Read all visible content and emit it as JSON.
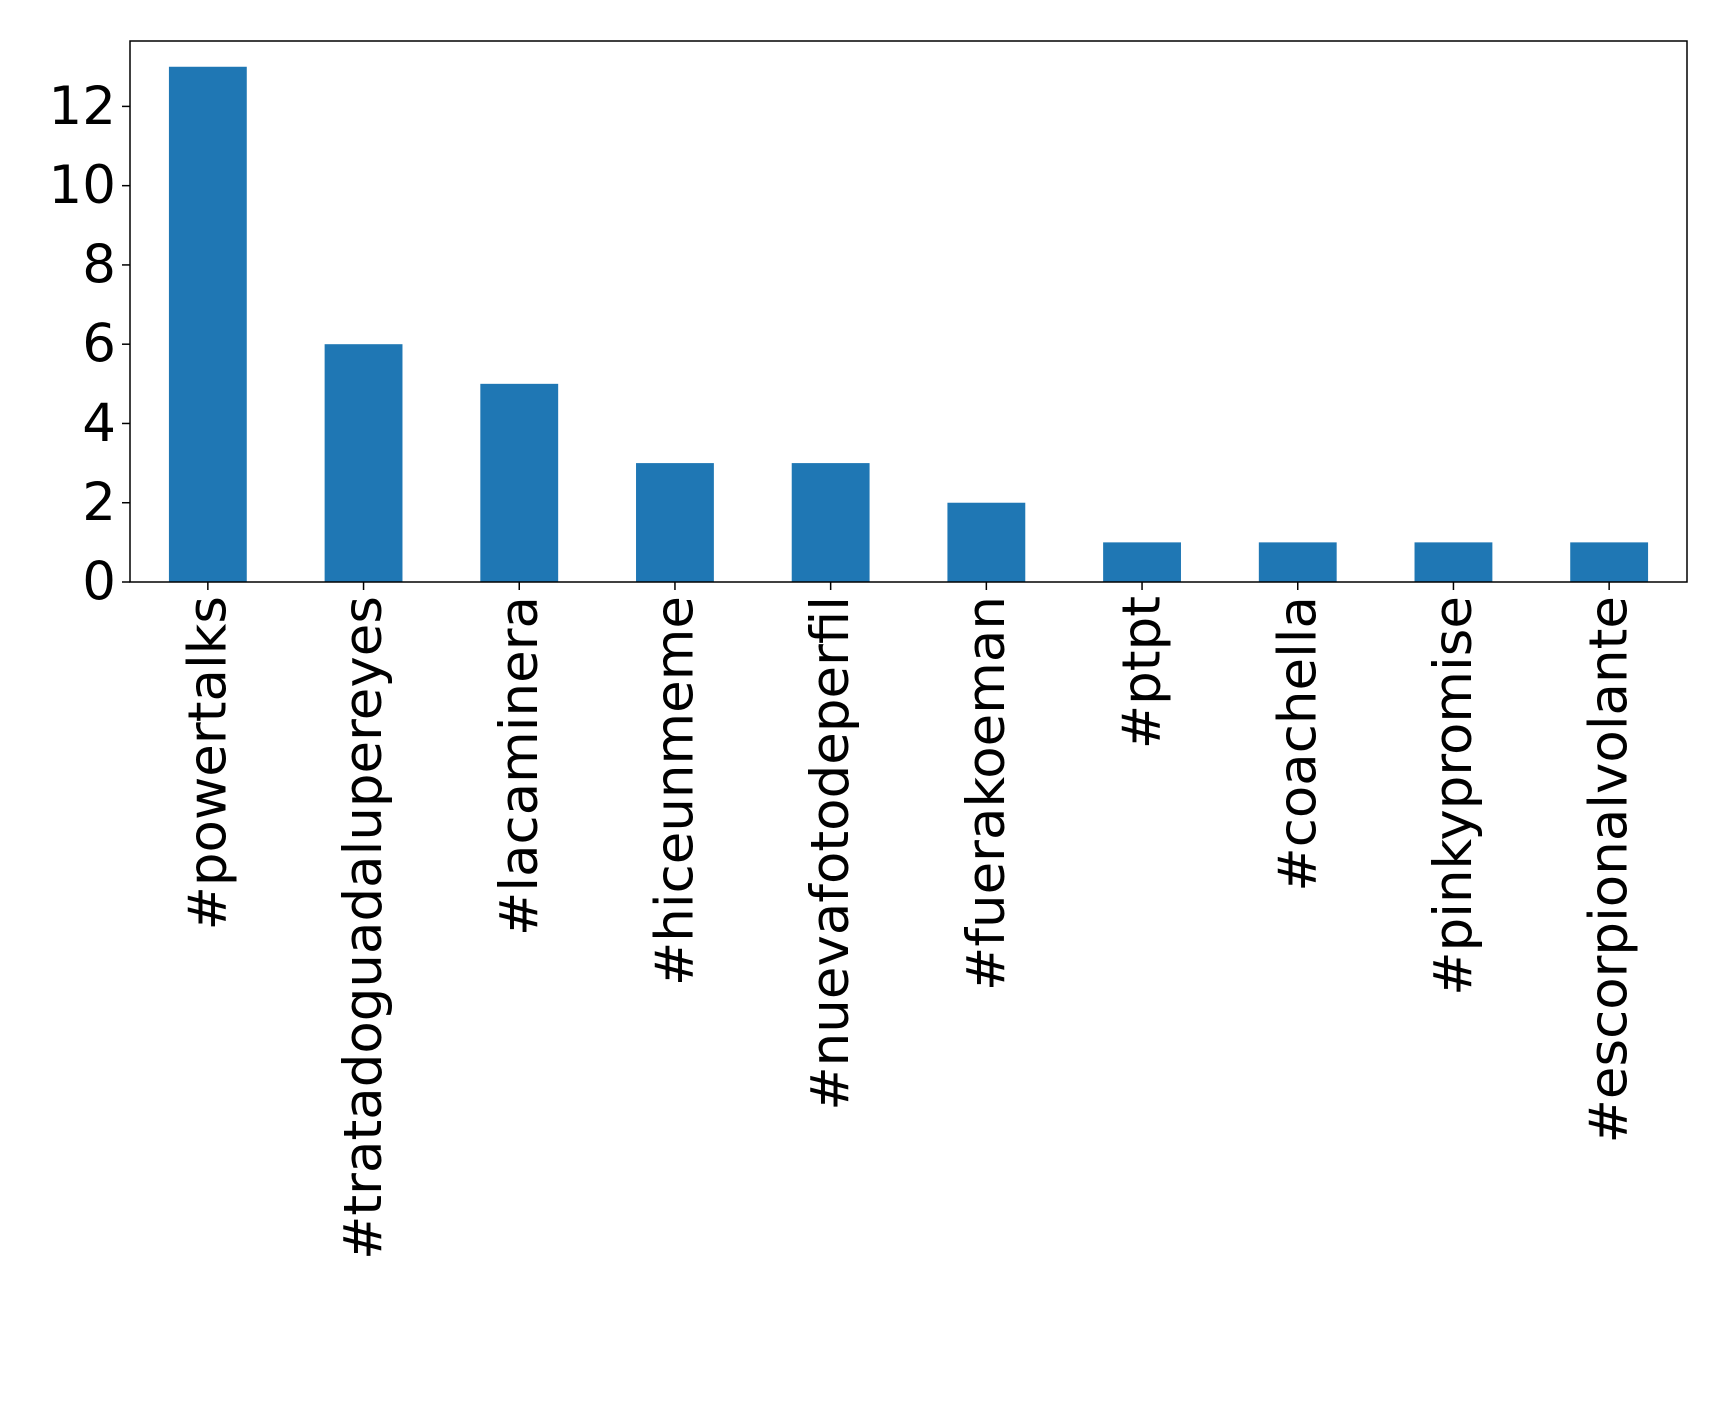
{
  "chart_data": {
    "type": "bar",
    "categories": [
      "#powertalks",
      "#tratadoguadalupereyes",
      "#lacaminera",
      "#hiceunmeme",
      "#nuevafotodeperfil",
      "#fuerakoeman",
      "#ptpt",
      "#coachella",
      "#pinkypromise",
      "#escorpionalvolante"
    ],
    "values": [
      13,
      6,
      5,
      3,
      3,
      2,
      1,
      1,
      1,
      1
    ],
    "color": "#1f77b4",
    "ylim": [
      0,
      13.65
    ],
    "yticks": [
      0,
      2,
      4,
      6,
      8,
      10,
      12
    ],
    "grid": false
  }
}
